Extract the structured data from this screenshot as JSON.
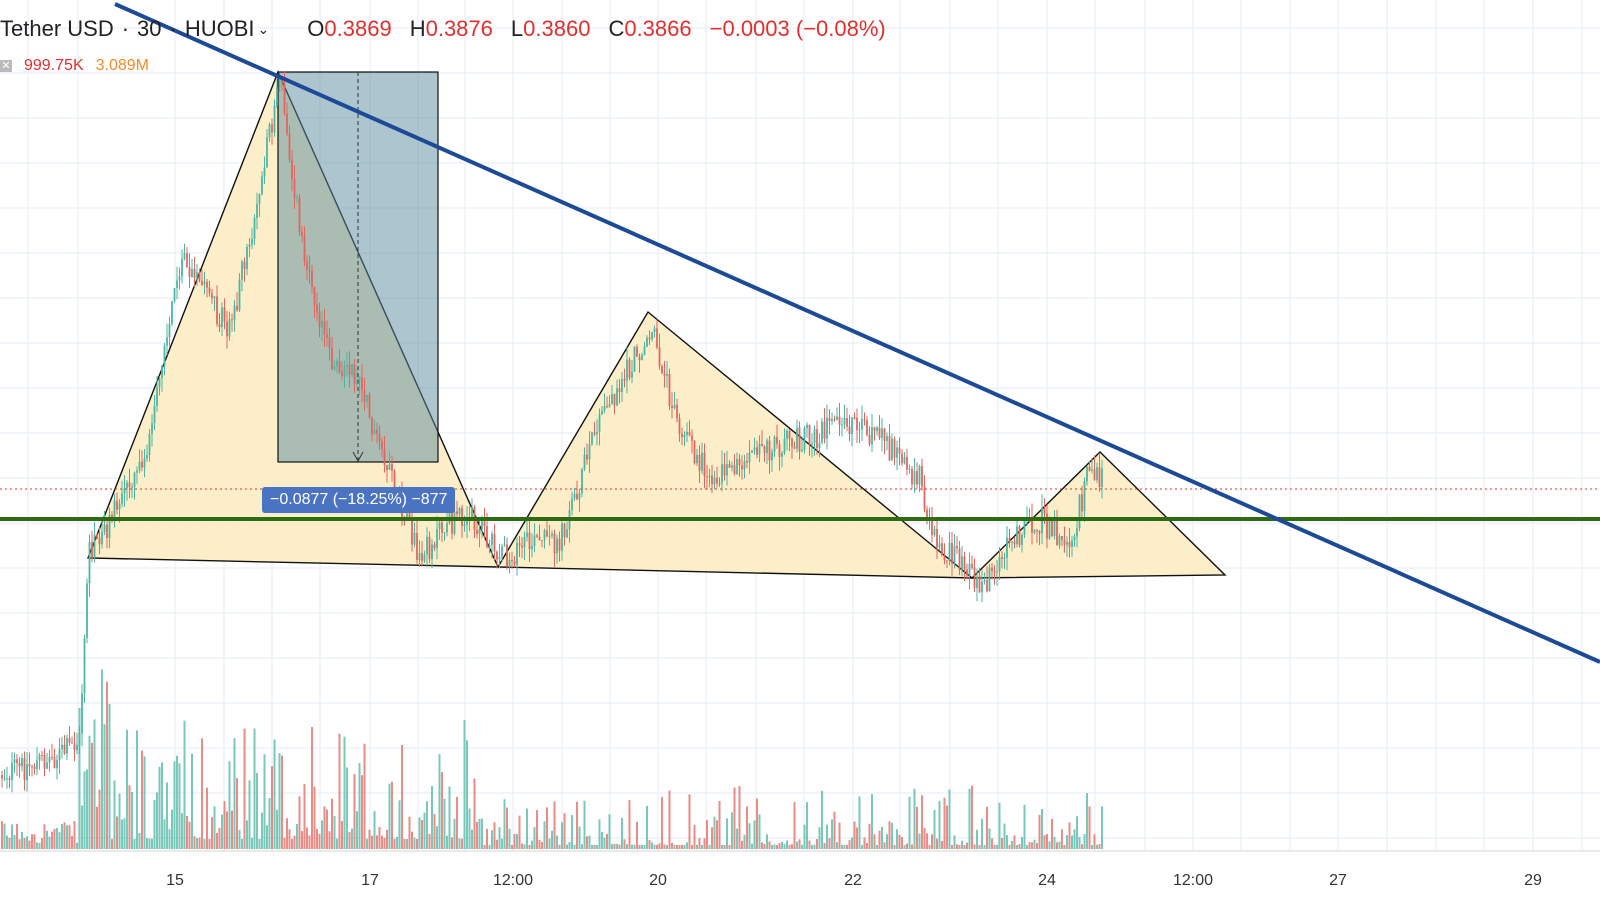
{
  "header": {
    "symbol": "Tether USD",
    "interval": "30",
    "exchange": "HUOBI",
    "dropdown_glyph": "⌄",
    "open_key": "O",
    "open": "0.3869",
    "high_key": "H",
    "high": "0.3876",
    "low_key": "L",
    "low": "0.3860",
    "close_key": "C",
    "close": "0.3866",
    "change": "−0.0003 (−0.08%)"
  },
  "volume_legend": {
    "close_icon": "close-icon",
    "value1": "999.75K",
    "value2": "3.089M"
  },
  "measure_label": "−0.0877 (−18.25%) −877",
  "x_axis_labels": [
    "15",
    "17",
    "12:00",
    "20",
    "22",
    "24",
    "12:00",
    "27",
    "29"
  ],
  "colors": {
    "up": "#4db6a3",
    "down": "#e0675f",
    "trendline": "#1c4a96",
    "support": "#2f6b12",
    "pattern_fill": "#fbeec8",
    "measure_box": "#5b8c9e",
    "grid": "#e4edf5",
    "price_line": "#e0302d",
    "measure_label_bg": "#4a74c2"
  },
  "chart_data": {
    "type": "candlestick",
    "annotations": [
      "descending trendline",
      "horizontal support line",
      "head and shoulders triangles",
      "price range measurement"
    ]
  }
}
